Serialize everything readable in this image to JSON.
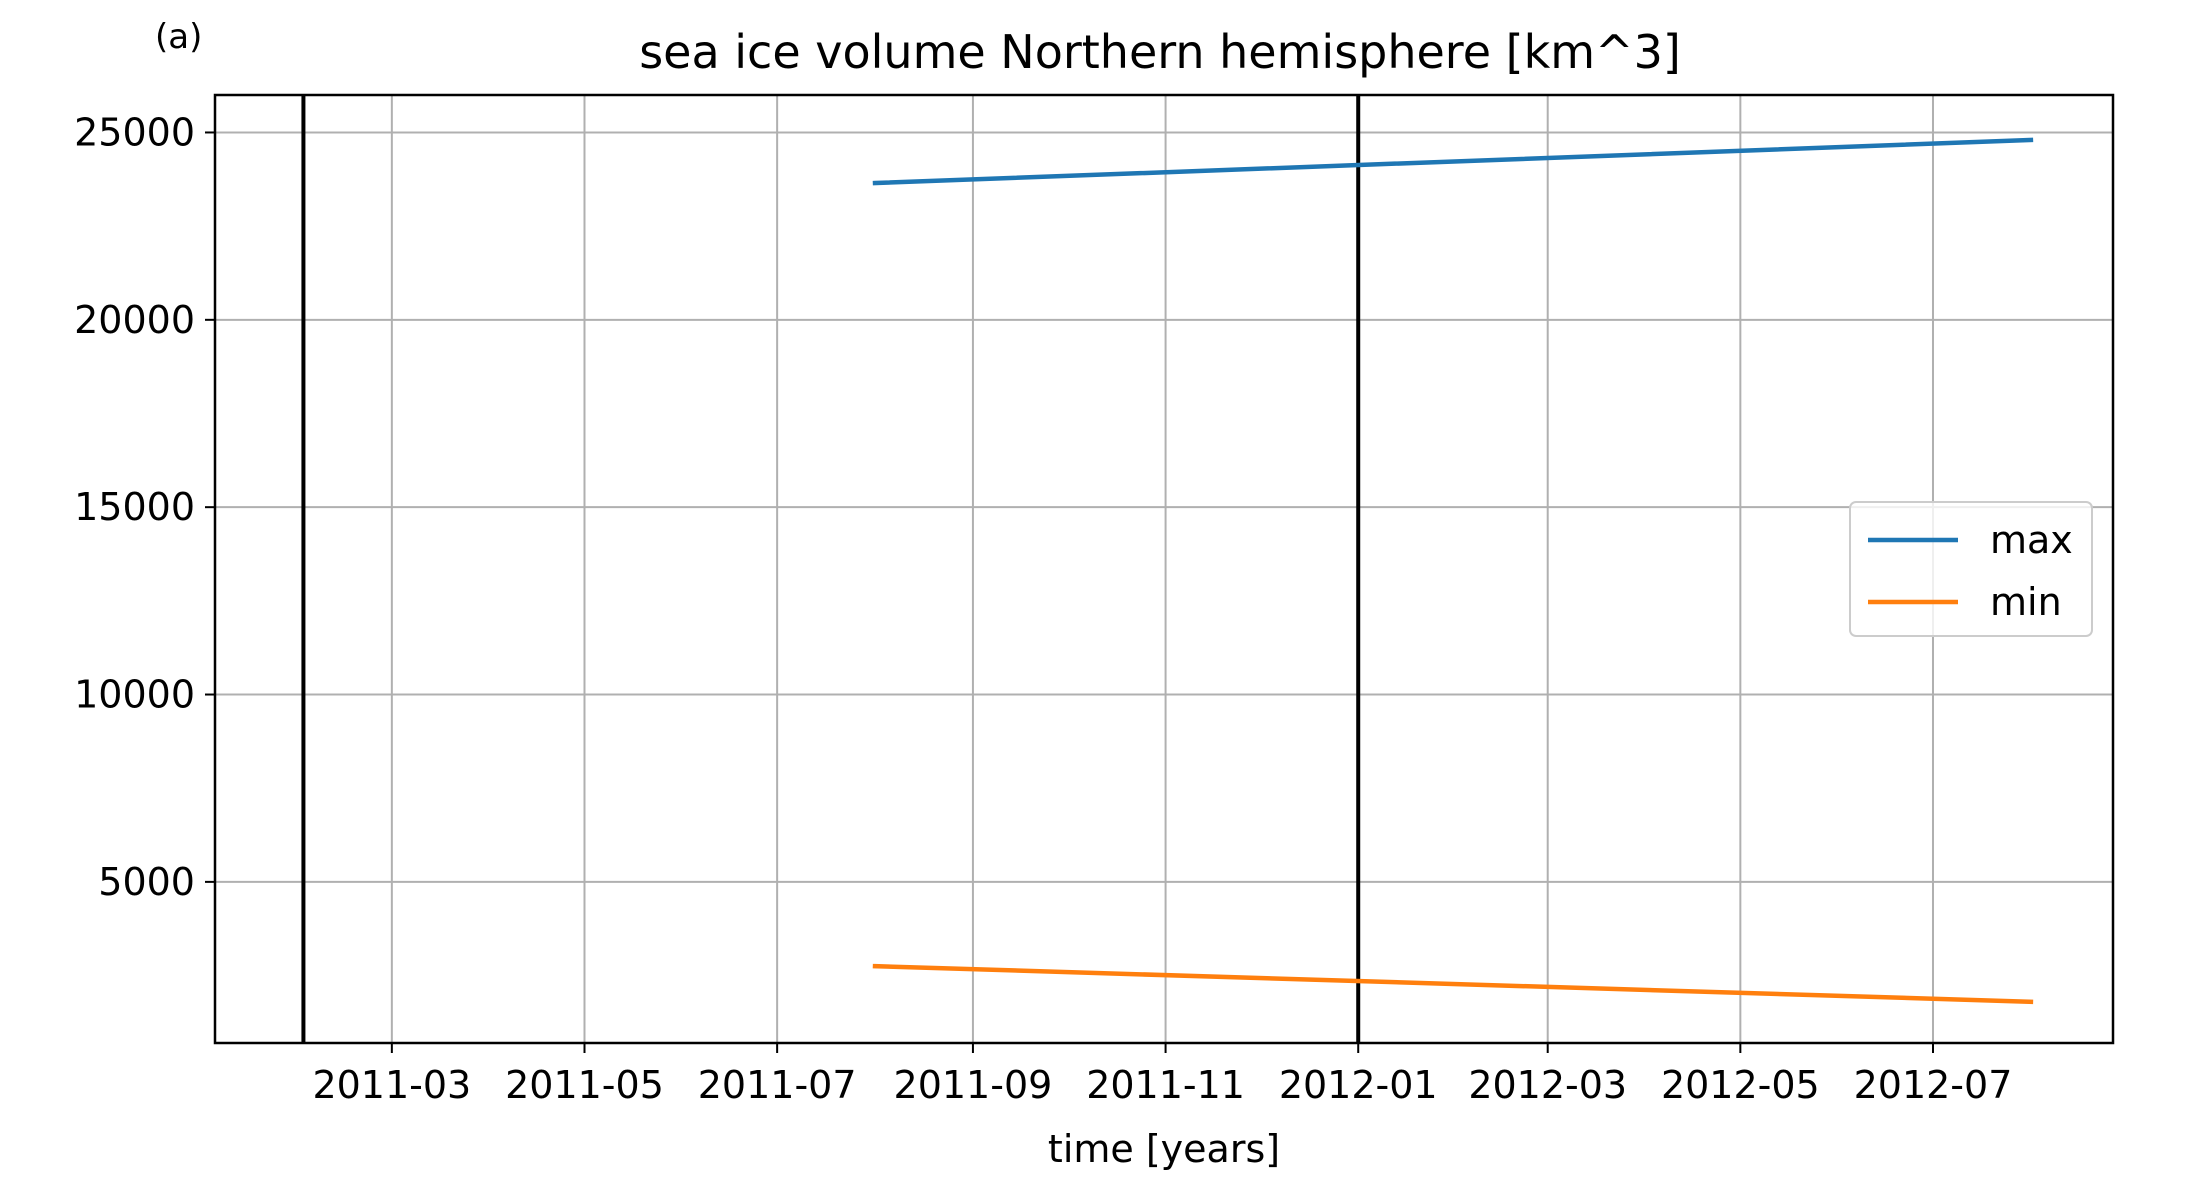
{
  "chart_data": {
    "type": "line",
    "panel_label": "(a)",
    "title": "sea ice volume Northern hemisphere [km^3]",
    "xlabel": "time [years]",
    "ylabel": "",
    "xlim": [
      "2011-01-04",
      "2012-08-27"
    ],
    "ylim": [
      700,
      26000
    ],
    "xticks": [
      "2011-03-01",
      "2011-05-01",
      "2011-07-01",
      "2011-09-01",
      "2011-11-01",
      "2012-01-01",
      "2012-03-01",
      "2012-05-01",
      "2012-07-01"
    ],
    "xtick_labels": [
      "2011-03",
      "2011-05",
      "2011-07",
      "2011-09",
      "2011-11",
      "2012-01",
      "2012-03",
      "2012-05",
      "2012-07"
    ],
    "yticks": [
      5000,
      10000,
      15000,
      20000,
      25000
    ],
    "ytick_labels": [
      "5000",
      "10000",
      "15000",
      "20000",
      "25000"
    ],
    "grid": true,
    "legend_position": "center-right",
    "vertical_lines": [
      "2011-02-01",
      "2012-01-01"
    ],
    "series": [
      {
        "name": "max",
        "color": "#1f77b4",
        "x": [
          "2011-08-01",
          "2012-08-01"
        ],
        "values": [
          23650,
          24800
        ]
      },
      {
        "name": "min",
        "color": "#ff7f0e",
        "x": [
          "2011-08-01",
          "2012-08-01"
        ],
        "values": [
          2750,
          1800
        ]
      }
    ]
  }
}
